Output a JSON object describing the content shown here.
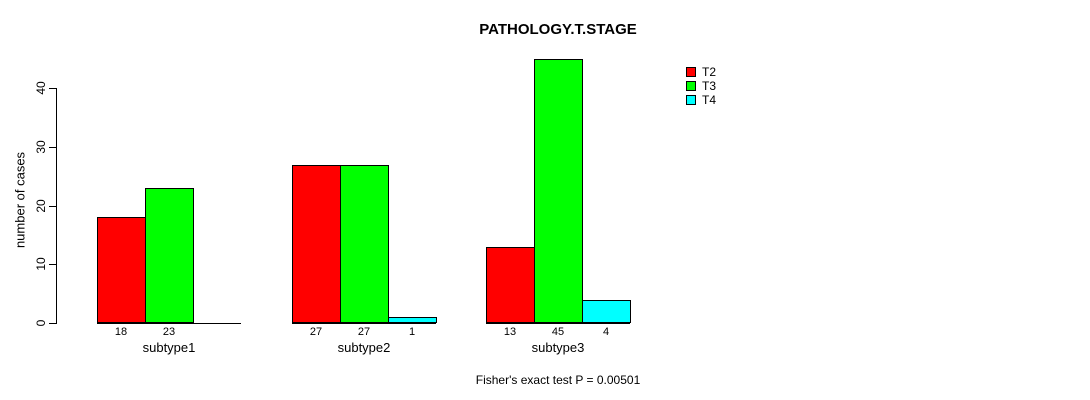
{
  "chart_data": {
    "type": "bar",
    "title": "PATHOLOGY.T.STAGE",
    "ylabel": "number of cases",
    "xlabel": "",
    "categories": [
      "subtype1",
      "subtype2",
      "subtype3"
    ],
    "series": [
      {
        "name": "T2",
        "color": "#FF0000",
        "values": [
          18,
          27,
          13
        ]
      },
      {
        "name": "T3",
        "color": "#00FF00",
        "values": [
          23,
          27,
          45
        ]
      },
      {
        "name": "T4",
        "color": "#00FFFF",
        "values": [
          null,
          1,
          4
        ]
      }
    ],
    "yticks": [
      0,
      10,
      20,
      30,
      40
    ],
    "ylim": [
      0,
      45
    ],
    "grid": false,
    "bar_value_labels_shown": true,
    "legend": {
      "position": "right",
      "entries": [
        "T2",
        "T3",
        "T4"
      ]
    },
    "annotation": "Fisher's exact test P = 0.00501",
    "bar_border_color": "#000000",
    "axis_color": "#000000",
    "background_color": "#FFFFFF"
  }
}
